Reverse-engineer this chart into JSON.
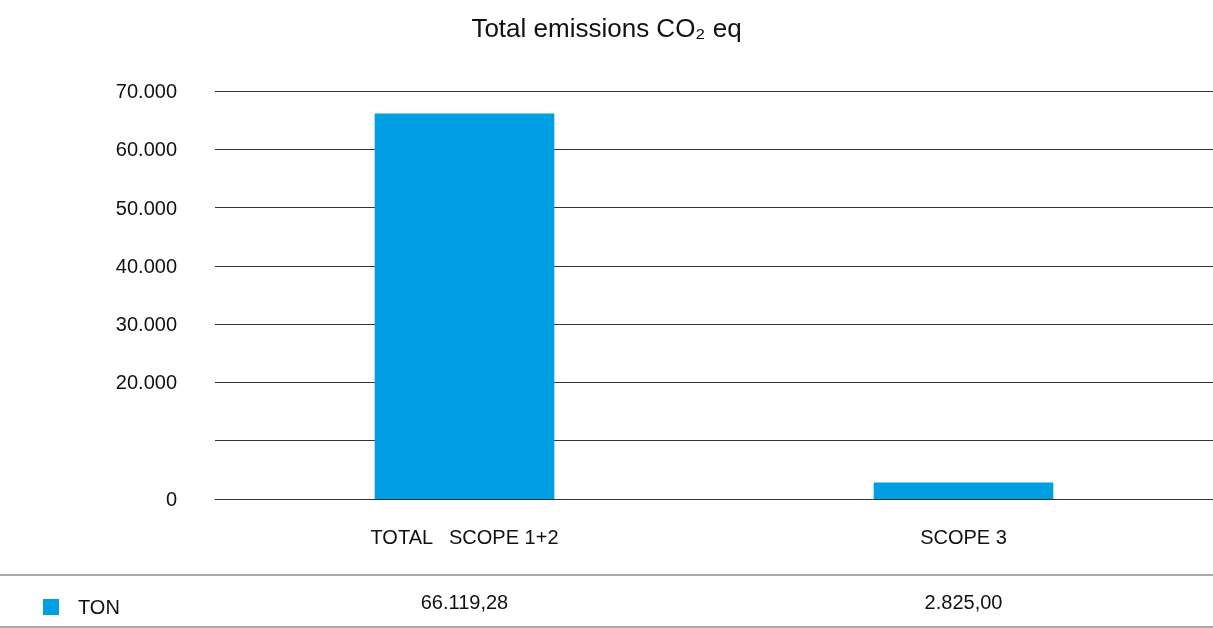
{
  "chart_data": {
    "type": "bar",
    "title": "Total emissions CO₂ eq",
    "categories": [
      "TOTAL   SCOPE 1+2",
      "SCOPE 3"
    ],
    "series": [
      {
        "name": "TON",
        "color": "#009fe3",
        "values": [
          66119.28,
          2825.0
        ],
        "value_labels": [
          "66.119,28",
          "2.825,00"
        ]
      }
    ],
    "ylim": [
      0,
      70000
    ],
    "yticks": [
      0,
      {
        "value": 10000,
        "label": null
      },
      {
        "value": 20000,
        "label": "20.000"
      },
      {
        "value": 30000,
        "label": "30.000"
      },
      {
        "value": 40000,
        "label": "40.000"
      },
      {
        "value": 50000,
        "label": "50.000"
      },
      {
        "value": 60000,
        "label": "60.000"
      },
      {
        "value": 70000,
        "label": "70.000"
      }
    ],
    "grid": "y",
    "legend": "bottom left"
  }
}
